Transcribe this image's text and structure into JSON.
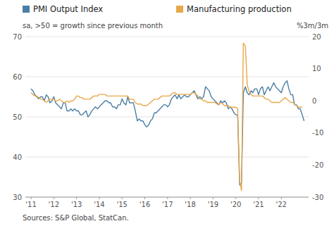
{
  "chart_data": {
    "type": "line",
    "ylabel": "sa, >50 = growth since previous month",
    "y2label": "%3m/3m",
    "source": "Sources: S&P Global, StatCan.",
    "legend": "top",
    "grid": true,
    "xlim": [
      2010.75,
      2023.2
    ],
    "xticks": [
      {
        "value": 2011,
        "label": "'11"
      },
      {
        "value": 2012,
        "label": "'12"
      },
      {
        "value": 2013,
        "label": "'13"
      },
      {
        "value": 2014,
        "label": "'14"
      },
      {
        "value": 2015,
        "label": "'15"
      },
      {
        "value": 2016,
        "label": "'16"
      },
      {
        "value": 2017,
        "label": "'17"
      },
      {
        "value": 2018,
        "label": "'18"
      },
      {
        "value": 2019,
        "label": "'19"
      },
      {
        "value": 2020,
        "label": "'20"
      },
      {
        "value": 2021,
        "label": "'21"
      },
      {
        "value": 2022,
        "label": "'22"
      }
    ],
    "ylim": [
      30,
      70
    ],
    "yticks": [
      30,
      40,
      50,
      60,
      70
    ],
    "y2lim": [
      -30,
      20
    ],
    "y2ticks": [
      -30,
      -20,
      -10,
      0,
      10,
      20
    ],
    "series": [
      {
        "name": "PMI Output Index",
        "color": "#4a7fa5",
        "axis": "y",
        "x": [
          2011.0,
          2011.08,
          2011.17,
          2011.25,
          2011.33,
          2011.42,
          2011.5,
          2011.58,
          2011.67,
          2011.75,
          2011.83,
          2011.92,
          2012.0,
          2012.08,
          2012.17,
          2012.25,
          2012.33,
          2012.42,
          2012.5,
          2012.58,
          2012.67,
          2012.75,
          2012.83,
          2012.92,
          2013.0,
          2013.08,
          2013.17,
          2013.25,
          2013.33,
          2013.42,
          2013.5,
          2013.58,
          2013.67,
          2013.75,
          2013.83,
          2013.92,
          2014.0,
          2014.08,
          2014.17,
          2014.25,
          2014.33,
          2014.42,
          2014.5,
          2014.58,
          2014.67,
          2014.75,
          2014.83,
          2014.92,
          2015.0,
          2015.08,
          2015.17,
          2015.25,
          2015.33,
          2015.42,
          2015.5,
          2015.58,
          2015.67,
          2015.75,
          2015.83,
          2015.92,
          2016.0,
          2016.08,
          2016.17,
          2016.25,
          2016.33,
          2016.42,
          2016.5,
          2016.58,
          2016.67,
          2016.75,
          2016.83,
          2016.92,
          2017.0,
          2017.08,
          2017.17,
          2017.25,
          2017.33,
          2017.42,
          2017.5,
          2017.58,
          2017.67,
          2017.75,
          2017.83,
          2017.92,
          2018.0,
          2018.08,
          2018.17,
          2018.25,
          2018.33,
          2018.42,
          2018.5,
          2018.58,
          2018.67,
          2018.75,
          2018.83,
          2018.92,
          2019.0,
          2019.08,
          2019.17,
          2019.25,
          2019.33,
          2019.42,
          2019.5,
          2019.58,
          2019.67,
          2019.75,
          2019.83,
          2019.92,
          2020.0,
          2020.08,
          2020.17,
          2020.25,
          2020.33,
          2020.42,
          2020.5,
          2020.58,
          2020.67,
          2020.75,
          2020.83,
          2020.92,
          2021.0,
          2021.08,
          2021.17,
          2021.25,
          2021.33,
          2021.42,
          2021.5,
          2021.58,
          2021.67,
          2021.75,
          2021.83,
          2021.92,
          2022.0,
          2022.08,
          2022.17,
          2022.25,
          2022.33,
          2022.42,
          2022.5,
          2022.58,
          2022.67,
          2022.75,
          2022.83,
          2022.92,
          2023.0
        ],
        "values": [
          57.0,
          56.5,
          55.5,
          55.0,
          54.5,
          55.0,
          55.0,
          54.0,
          55.5,
          55.0,
          53.5,
          54.0,
          55.0,
          53.5,
          53.0,
          52.5,
          52.0,
          53.5,
          53.5,
          51.5,
          51.5,
          52.0,
          51.5,
          52.0,
          51.5,
          51.5,
          50.5,
          50.5,
          51.0,
          51.5,
          50.0,
          50.5,
          51.5,
          52.0,
          52.5,
          52.0,
          52.5,
          53.0,
          53.5,
          54.0,
          54.0,
          53.5,
          53.5,
          52.5,
          52.5,
          52.0,
          53.0,
          53.0,
          54.5,
          53.5,
          53.0,
          55.0,
          53.5,
          53.5,
          53.5,
          51.5,
          49.0,
          49.5,
          49.0,
          49.0,
          48.0,
          47.5,
          48.0,
          49.0,
          49.5,
          51.0,
          51.0,
          51.5,
          52.0,
          52.5,
          53.0,
          53.0,
          52.5,
          53.0,
          54.5,
          55.0,
          55.5,
          54.5,
          55.5,
          54.5,
          55.0,
          55.5,
          55.0,
          55.0,
          55.5,
          56.0,
          56.5,
          55.5,
          54.5,
          55.0,
          54.5,
          55.0,
          57.5,
          57.0,
          56.5,
          55.0,
          54.5,
          54.0,
          53.5,
          53.0,
          54.0,
          53.5,
          54.0,
          53.5,
          52.0,
          52.5,
          52.0,
          51.0,
          50.5,
          50.5,
          33.0,
          33.5,
          56.0,
          57.5,
          56.0,
          55.5,
          56.5,
          56.0,
          57.0,
          57.0,
          55.5,
          57.0,
          57.5,
          55.5,
          56.5,
          57.5,
          56.5,
          57.5,
          58.5,
          57.5,
          57.0,
          56.5,
          56.0,
          57.5,
          58.5,
          59.0,
          57.0,
          55.5,
          55.5,
          53.0,
          53.0,
          52.0,
          52.0,
          50.5,
          49.0
        ]
      },
      {
        "name": "Manufacturing production",
        "color": "#e8a84c",
        "axis": "y2",
        "x": [
          2011.0,
          2011.08,
          2011.17,
          2011.25,
          2011.33,
          2011.42,
          2011.5,
          2011.58,
          2011.67,
          2011.75,
          2011.83,
          2011.92,
          2012.0,
          2012.08,
          2012.17,
          2012.25,
          2012.33,
          2012.42,
          2012.5,
          2012.58,
          2012.67,
          2012.75,
          2012.83,
          2012.92,
          2013.0,
          2013.08,
          2013.17,
          2013.25,
          2013.33,
          2013.42,
          2013.5,
          2013.58,
          2013.67,
          2013.75,
          2013.83,
          2013.92,
          2014.0,
          2014.08,
          2014.17,
          2014.25,
          2014.33,
          2014.42,
          2014.5,
          2014.58,
          2014.67,
          2014.75,
          2014.83,
          2014.92,
          2015.0,
          2015.08,
          2015.17,
          2015.25,
          2015.33,
          2015.42,
          2015.5,
          2015.58,
          2015.67,
          2015.75,
          2015.83,
          2015.92,
          2016.0,
          2016.08,
          2016.17,
          2016.25,
          2016.33,
          2016.42,
          2016.5,
          2016.58,
          2016.67,
          2016.75,
          2016.83,
          2016.92,
          2017.0,
          2017.08,
          2017.17,
          2017.25,
          2017.33,
          2017.42,
          2017.5,
          2017.58,
          2017.67,
          2017.75,
          2017.83,
          2017.92,
          2018.0,
          2018.08,
          2018.17,
          2018.25,
          2018.33,
          2018.42,
          2018.5,
          2018.58,
          2018.67,
          2018.75,
          2018.83,
          2018.92,
          2019.0,
          2019.08,
          2019.17,
          2019.25,
          2019.33,
          2019.42,
          2019.5,
          2019.58,
          2019.67,
          2019.75,
          2019.83,
          2019.92,
          2020.0,
          2020.08,
          2020.17,
          2020.25,
          2020.33,
          2020.42,
          2020.5,
          2020.58,
          2020.67,
          2020.75,
          2020.83,
          2020.92,
          2021.0,
          2021.08,
          2021.17,
          2021.25,
          2021.33,
          2021.42,
          2021.5,
          2021.58,
          2021.67,
          2021.75,
          2021.83,
          2021.92,
          2022.0,
          2022.08,
          2022.17,
          2022.25,
          2022.33,
          2022.42,
          2022.5,
          2022.58,
          2022.67,
          2022.75,
          2022.83,
          2022.92
        ],
        "values": [
          2.5,
          2.0,
          1.5,
          1.5,
          1.0,
          0.5,
          0.5,
          0.0,
          -0.5,
          0.0,
          0.5,
          0.5,
          0.5,
          0.0,
          0.0,
          0.5,
          0.0,
          -0.5,
          -0.5,
          0.0,
          -0.5,
          0.0,
          0.0,
          0.5,
          1.5,
          1.5,
          1.0,
          1.0,
          0.5,
          0.5,
          0.5,
          0.5,
          1.0,
          1.5,
          1.5,
          1.5,
          2.0,
          2.0,
          2.0,
          2.0,
          1.5,
          1.5,
          1.5,
          1.5,
          1.5,
          1.5,
          1.5,
          1.5,
          1.5,
          1.5,
          1.5,
          1.5,
          0.5,
          0.5,
          0.5,
          -0.5,
          -1.0,
          -1.0,
          -1.0,
          -1.5,
          -1.5,
          -1.5,
          -1.0,
          -0.5,
          0.0,
          0.5,
          0.5,
          0.5,
          1.0,
          1.5,
          1.5,
          1.5,
          1.5,
          1.5,
          2.0,
          2.5,
          2.5,
          2.0,
          2.0,
          2.0,
          2.0,
          2.0,
          2.0,
          2.0,
          2.0,
          2.5,
          2.5,
          2.0,
          1.5,
          0.5,
          0.5,
          0.0,
          0.0,
          -0.5,
          -0.5,
          -0.5,
          -0.5,
          -0.5,
          -1.0,
          -1.0,
          -0.5,
          -1.0,
          -1.5,
          -1.5,
          -1.5,
          -2.0,
          -2.0,
          -2.0,
          -2.0,
          -2.5,
          -25.0,
          -28.0,
          18.0,
          17.0,
          5.0,
          3.0,
          2.0,
          1.5,
          1.5,
          1.5,
          1.5,
          1.5,
          1.5,
          1.0,
          0.5,
          0.5,
          0.0,
          -0.5,
          -0.5,
          -0.5,
          -0.5,
          -0.5,
          0.0,
          0.5,
          1.0,
          0.5,
          0.0,
          -0.5,
          -0.5,
          -1.0,
          -1.5,
          -2.0,
          -2.0,
          -2.0
        ]
      }
    ]
  }
}
